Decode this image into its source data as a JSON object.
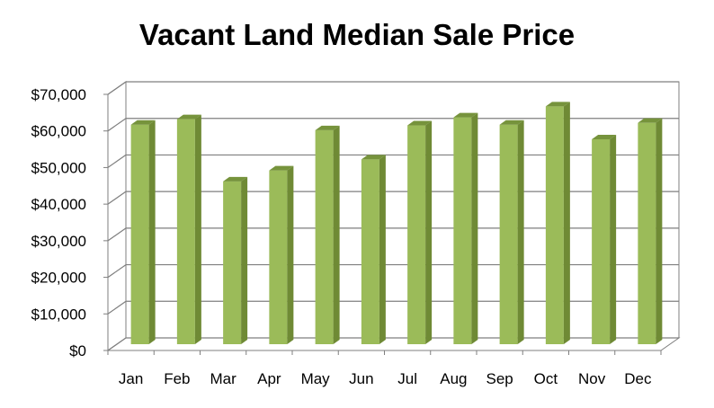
{
  "chart_data": {
    "type": "bar",
    "title": "Vacant Land Median Sale Price",
    "categories": [
      "Jan",
      "Feb",
      "Mar",
      "Apr",
      "May",
      "Jun",
      "Jul",
      "Aug",
      "Sep",
      "Oct",
      "Nov",
      "Dec"
    ],
    "values": [
      60000,
      61500,
      44500,
      47500,
      58500,
      50500,
      59800,
      62000,
      60000,
      65000,
      56000,
      60500
    ],
    "y_ticks": [
      "$0",
      "$10,000",
      "$20,000",
      "$30,000",
      "$40,000",
      "$50,000",
      "$60,000",
      "$70,000"
    ],
    "ylim": [
      0,
      70000
    ],
    "grid": true,
    "legend": "none",
    "style": "3d-column",
    "colors": {
      "bar_front": "#9bbb59",
      "bar_side": "#6f8a35",
      "bar_top": "#76933c",
      "gridline": "#7f7f7f",
      "wall": "#ffffff",
      "text": "#000000"
    }
  }
}
